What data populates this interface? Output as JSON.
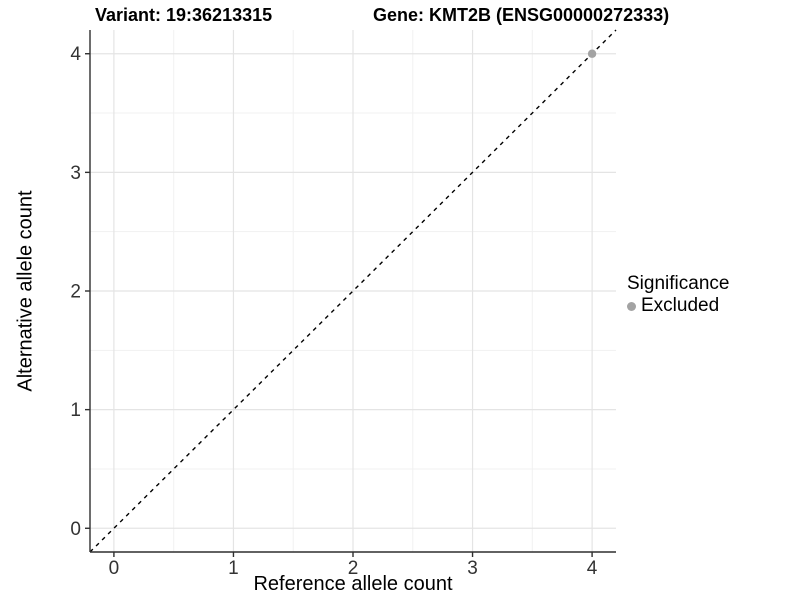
{
  "figure": {
    "background": "#ffffff"
  },
  "chart_data": {
    "type": "scatter",
    "titles": {
      "left": "Variant: 19:36213315",
      "right": "Gene: KMT2B (ENSG00000272333)"
    },
    "xlabel": "Reference allele count",
    "ylabel": "Alternative allele count",
    "x_ticks": [
      0,
      1,
      2,
      3,
      4
    ],
    "y_ticks": [
      0,
      1,
      2,
      3,
      4
    ],
    "xlim": [
      -0.2,
      4.2
    ],
    "ylim": [
      -0.2,
      4.2
    ],
    "grid": {
      "minor_x": [
        0.5,
        1.5,
        2.5,
        3.5
      ],
      "minor_y": [
        0.5,
        1.5,
        2.5,
        3.5
      ],
      "major_on": true
    },
    "reference_line": {
      "slope": 1,
      "intercept": 0,
      "style": "dashed",
      "color": "#000000"
    },
    "points": [
      {
        "x": 4,
        "y": 4,
        "significance": "Excluded"
      }
    ],
    "legend": {
      "title": "Significance",
      "position": "right",
      "entries": [
        {
          "label": "Excluded",
          "color": "#a3a3a3",
          "marker": "circle"
        }
      ]
    },
    "colors": {
      "grid_major": "#e4e4e4",
      "grid_minor": "#f1f1f1",
      "axis_line": "#2f2f2f",
      "tick_mark": "#2f2f2f",
      "tick_label": "#333333",
      "point_default": "#a3a3a3"
    }
  }
}
